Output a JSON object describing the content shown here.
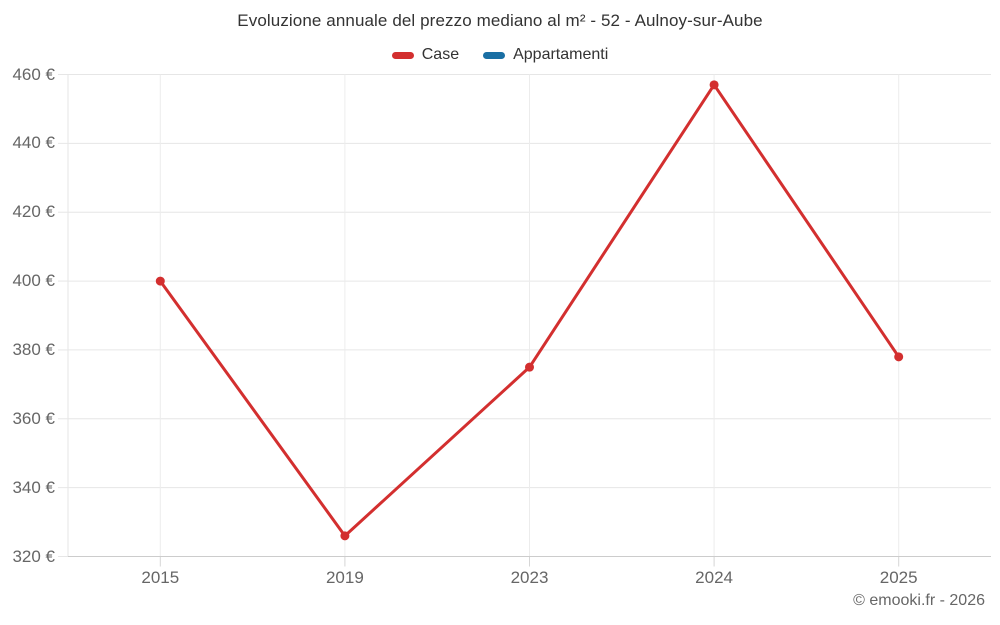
{
  "header": {
    "title": "Evoluzione annuale del prezzo mediano al m² - 52 - Aulnoy-sur-Aube"
  },
  "footer": {
    "attribution": "© emooki.fr - 2026"
  },
  "theme": {
    "title_text": "#333333",
    "axis_label_text": "#666666",
    "gridline": "#e6e6e6",
    "vertical_gridline": "#ececec",
    "axis_line": "#cccccc",
    "tick": "#d6d6d6",
    "background": "#ffffff"
  },
  "chart_data": {
    "type": "line",
    "title": "Evoluzione annuale del prezzo mediano al m² - 52 - Aulnoy-sur-Aube",
    "categories": [
      "2015",
      "2019",
      "2023",
      "2024",
      "2025"
    ],
    "series": [
      {
        "name": "Case",
        "color": "#d32f2f",
        "values": [
          400,
          326,
          375,
          457,
          378
        ]
      },
      {
        "name": "Appartamenti",
        "color": "#1a6fa4",
        "values": []
      }
    ],
    "xlabel": "",
    "ylabel": "",
    "y_tick_suffix": " €",
    "ylim": [
      320,
      460
    ],
    "ytick_step": 20,
    "grid": true,
    "legend_position": "top",
    "marker_radius": 4.5,
    "line_width": 3
  }
}
